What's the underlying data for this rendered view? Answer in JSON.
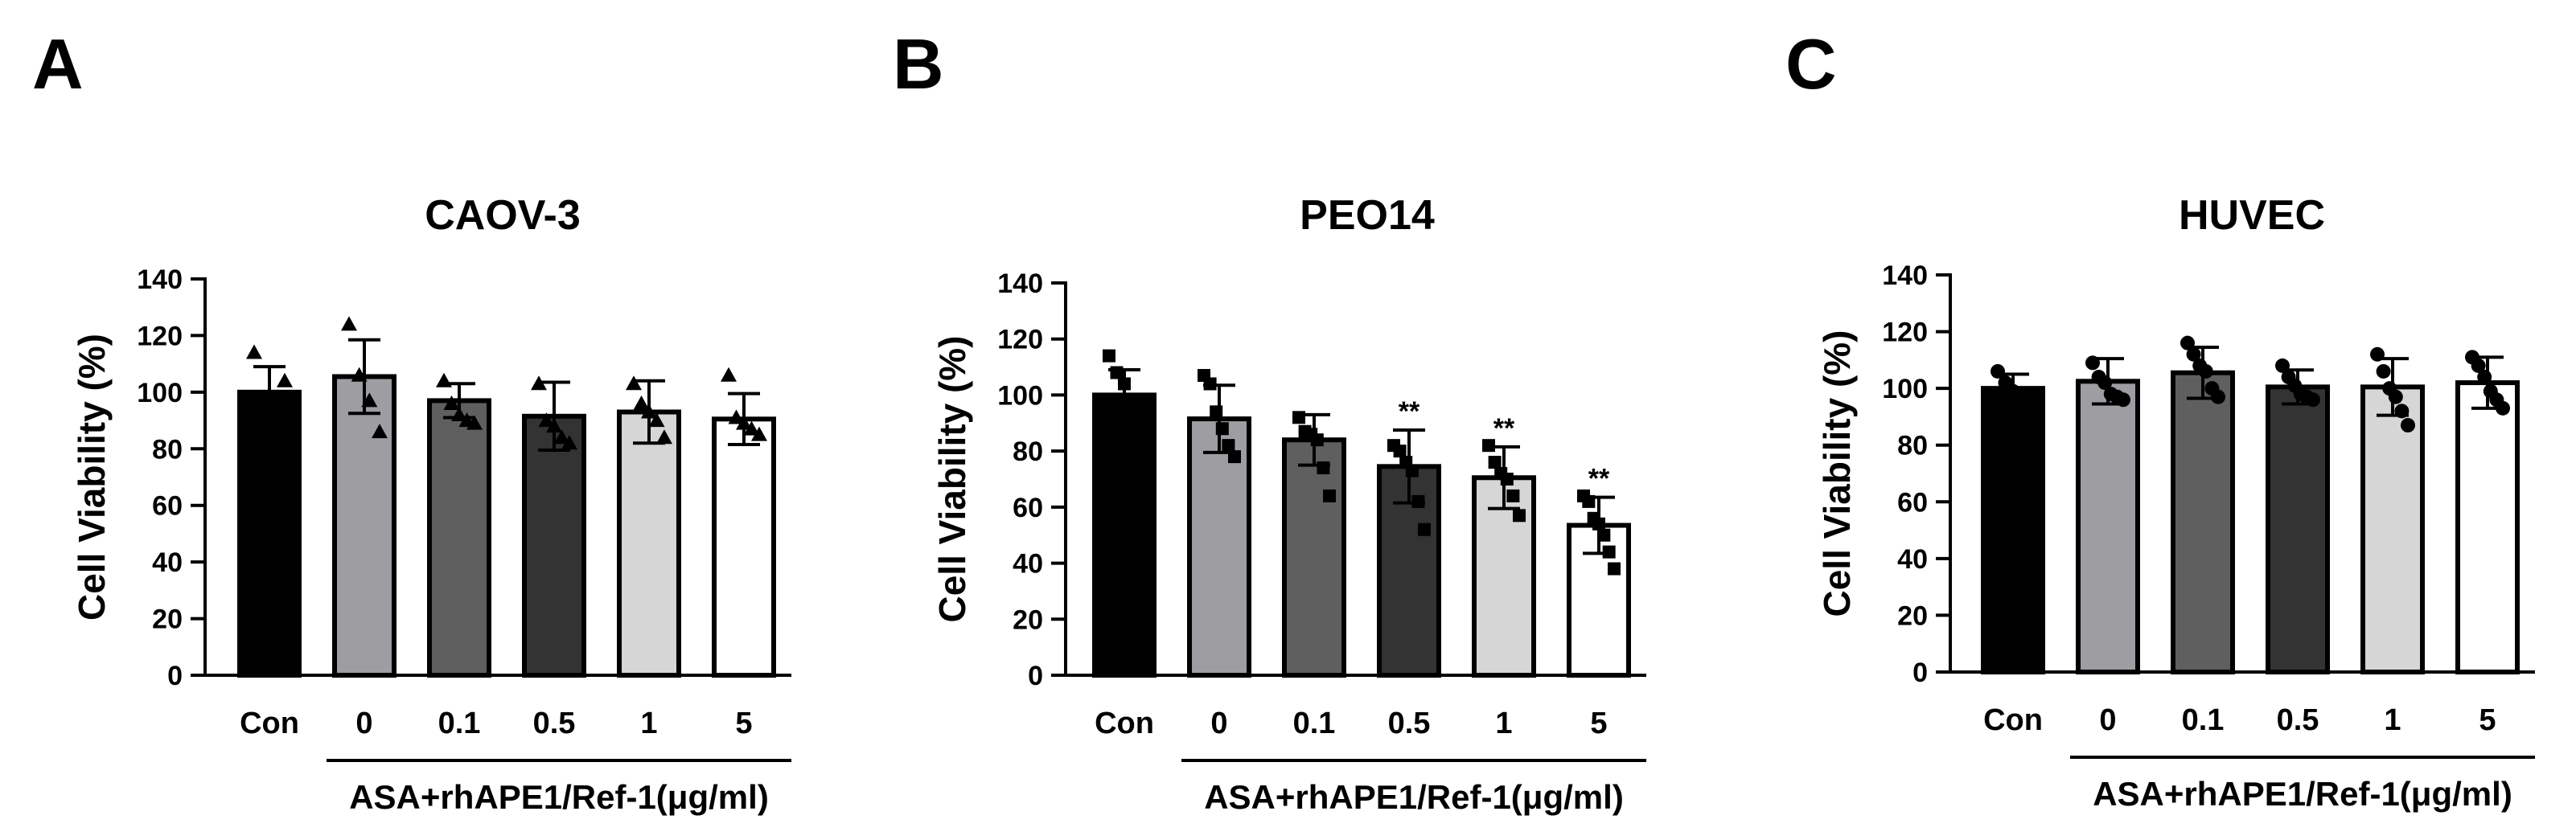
{
  "panels": [
    {
      "letter": "A",
      "chart_data": {
        "type": "bar",
        "title": "CAOV-3",
        "ylabel": "Cell Viability (%)",
        "xlabel": "ASA+rhAPE1/Ref-1(μg/ml)",
        "ylim": [
          0,
          140
        ],
        "yticks": [
          0,
          20,
          40,
          60,
          80,
          100,
          120,
          140
        ],
        "categories": [
          "Con",
          "0",
          "0.1",
          "0.5",
          "1",
          "5"
        ],
        "treatment_group": [
          "0",
          "0.1",
          "0.5",
          "1",
          "5"
        ],
        "values": [
          100,
          105.5,
          97,
          91.5,
          93,
          90.5
        ],
        "errors": [
          9,
          13,
          6,
          12,
          11,
          9
        ],
        "point_marker": "triangle",
        "points": [
          [
            114,
            104
          ],
          [
            124,
            106,
            97,
            86
          ],
          [
            104,
            96,
            92,
            90,
            89
          ],
          [
            103,
            90,
            88,
            84,
            82
          ],
          [
            103,
            96,
            93,
            90,
            84
          ],
          [
            106,
            91,
            89,
            87,
            85
          ]
        ],
        "significance": [
          "",
          "",
          "",
          "",
          "",
          ""
        ],
        "colors": [
          "#000000",
          "#9d9da2",
          "#5f5f5f",
          "#333333",
          "#d6d6d6",
          "#ffffff"
        ]
      }
    },
    {
      "letter": "B",
      "chart_data": {
        "type": "bar",
        "title": "PEO14",
        "ylabel": "Cell Viability (%)",
        "xlabel": "ASA+rhAPE1/Ref-1(μg/ml)",
        "ylim": [
          0,
          140
        ],
        "yticks": [
          0,
          20,
          40,
          60,
          80,
          100,
          120,
          140
        ],
        "categories": [
          "Con",
          "0",
          "0.1",
          "0.5",
          "1",
          "5"
        ],
        "treatment_group": [
          "0",
          "0.1",
          "0.5",
          "1",
          "5"
        ],
        "values": [
          100,
          91.5,
          84,
          74.5,
          70.5,
          53.5
        ],
        "errors": [
          9,
          12,
          9,
          13,
          11,
          10
        ],
        "point_marker": "square",
        "points": [
          [
            114,
            108,
            104,
            98,
            96
          ],
          [
            107,
            104,
            94,
            88,
            82,
            78
          ],
          [
            92,
            87,
            86,
            84,
            74,
            64
          ],
          [
            82,
            80,
            76,
            73,
            62,
            52
          ],
          [
            82,
            76,
            72,
            70,
            64,
            57
          ],
          [
            64,
            62,
            56,
            54,
            50,
            44,
            38
          ]
        ],
        "significance": [
          "",
          "",
          "",
          "**",
          "**",
          "**"
        ],
        "colors": [
          "#000000",
          "#9d9da2",
          "#5f5f5f",
          "#333333",
          "#d6d6d6",
          "#ffffff"
        ]
      }
    },
    {
      "letter": "C",
      "chart_data": {
        "type": "bar",
        "title": "HUVEC",
        "ylabel": "Cell Viability (%)",
        "xlabel": "ASA+rhAPE1/Ref-1(μg/ml)",
        "ylim": [
          0,
          140
        ],
        "yticks": [
          0,
          20,
          40,
          60,
          80,
          100,
          120,
          140
        ],
        "categories": [
          "Con",
          "0",
          "0.1",
          "0.5",
          "1",
          "5"
        ],
        "treatment_group": [
          "0",
          "0.1",
          "0.5",
          "1",
          "5"
        ],
        "values": [
          100,
          102.5,
          105.5,
          100.5,
          100.5,
          102
        ],
        "errors": [
          5,
          8,
          9,
          6,
          10,
          9
        ],
        "point_marker": "circle",
        "points": [
          [
            106,
            102,
            99,
            97,
            96
          ],
          [
            109,
            104,
            102,
            98,
            97,
            96
          ],
          [
            116,
            112,
            108,
            106,
            100,
            97
          ],
          [
            108,
            104,
            101,
            98,
            97,
            96
          ],
          [
            112,
            106,
            100,
            97,
            92,
            87
          ],
          [
            111,
            108,
            104,
            99,
            96,
            93
          ]
        ],
        "significance": [
          "",
          "",
          "",
          "",
          "",
          ""
        ],
        "colors": [
          "#000000",
          "#9d9da2",
          "#5f5f5f",
          "#333333",
          "#d6d6d6",
          "#ffffff"
        ]
      }
    }
  ]
}
